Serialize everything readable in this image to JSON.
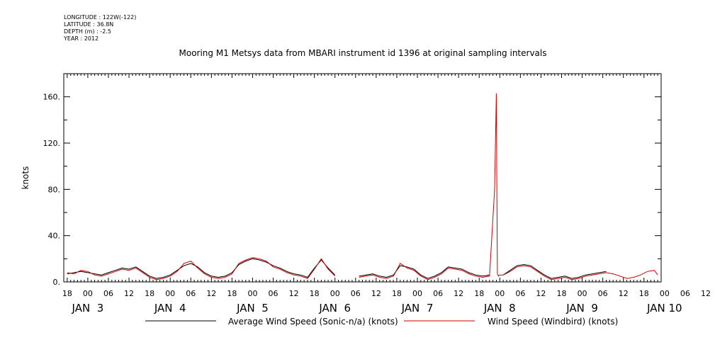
{
  "header": {
    "meta_lines": [
      "LONGITUDE : 122W(-122)",
      "LATITUDE : 36.8N",
      "DEPTH (m) : -2.5",
      "YEAR : 2012"
    ]
  },
  "chart_data": {
    "type": "line",
    "title": "Mooring M1 Metsys data from MBARI instrument id 1396 at original sampling intervals",
    "ylabel": "knots",
    "xlabel": "",
    "ylim": [
      0,
      180
    ],
    "yticks": [
      "0.",
      "40.",
      "80.",
      "120.",
      "160."
    ],
    "xlim_hours": [
      -7,
      167
    ],
    "x_unit": "hours from 2012-01-03 00:00",
    "hour_tick_labels": [
      "18",
      "00",
      "06",
      "12",
      "18",
      "00",
      "06",
      "12",
      "18",
      "00",
      "06",
      "12",
      "18",
      "00",
      "06",
      "12",
      "18",
      "00",
      "06",
      "12",
      "18",
      "00",
      "06",
      "12",
      "18",
      "00",
      "06",
      "12",
      "18",
      "00",
      "06",
      "12"
    ],
    "day_labels": [
      "JAN  3",
      "JAN  4",
      "JAN  5",
      "JAN  6",
      "JAN  7",
      "JAN  8",
      "JAN  9",
      "JAN 10"
    ],
    "legend_placement": "bottom",
    "series": [
      {
        "name": "Average Wind Speed (Sonic-n/a) (knots)",
        "color": "#000000",
        "x": [
          -6,
          -4,
          -2,
          0,
          2,
          4,
          6,
          8,
          10,
          12,
          14,
          16,
          18,
          20,
          22,
          24,
          26,
          28,
          30,
          32,
          34,
          36,
          38,
          40,
          42,
          44,
          46,
          48,
          50,
          52,
          54,
          56,
          58,
          60,
          62,
          64,
          66,
          68,
          70,
          72,
          74,
          76,
          78,
          79,
          81,
          83,
          85,
          87,
          89,
          91,
          93,
          95,
          97,
          99,
          101,
          103,
          105,
          107,
          109,
          111,
          113,
          115,
          117,
          119,
          121,
          123,
          125,
          127,
          129,
          131,
          133,
          135,
          137,
          139,
          141,
          143,
          145,
          147,
          149,
          151,
          153,
          155,
          157,
          159,
          161,
          163,
          165,
          166
        ],
        "y": [
          7,
          8,
          9,
          8,
          7,
          6,
          8,
          10,
          12,
          11,
          13,
          9,
          5,
          3,
          4,
          6,
          10,
          14,
          16,
          13,
          8,
          5,
          4,
          5,
          8,
          15,
          18,
          20,
          19,
          17,
          14,
          12,
          9,
          7,
          6,
          4,
          12,
          19,
          12,
          6,
          null,
          null,
          null,
          5,
          6,
          7,
          5,
          4,
          6,
          14,
          13,
          11,
          6,
          3,
          5,
          8,
          13,
          12,
          11,
          8,
          6,
          5,
          6,
          null,
          6,
          10,
          14,
          15,
          14,
          10,
          6,
          3,
          4,
          5,
          3,
          4,
          6,
          7,
          8,
          9,
          null,
          null,
          null,
          null,
          null,
          null,
          null,
          null
        ]
      },
      {
        "name": "Wind Speed (Windbird) (knots)",
        "color": "#cc0000",
        "x": [
          -6,
          -4,
          -2,
          0,
          2,
          4,
          6,
          8,
          10,
          12,
          14,
          16,
          18,
          20,
          22,
          24,
          26,
          28,
          30,
          32,
          34,
          36,
          38,
          40,
          42,
          44,
          46,
          48,
          50,
          52,
          54,
          56,
          58,
          60,
          62,
          64,
          66,
          68,
          70,
          72,
          74,
          76,
          78,
          79,
          81,
          83,
          85,
          87,
          89,
          91,
          93,
          95,
          97,
          99,
          101,
          103,
          105,
          107,
          109,
          111,
          113,
          115,
          117,
          118.5,
          119,
          119.3,
          119.6,
          120,
          121,
          123,
          125,
          127,
          129,
          131,
          133,
          135,
          137,
          139,
          141,
          143,
          145,
          147,
          149,
          151,
          153,
          155,
          157,
          159,
          161,
          163,
          165,
          166
        ],
        "y": [
          8,
          7,
          10,
          9,
          6,
          5,
          7,
          9,
          11,
          10,
          12,
          8,
          4,
          2,
          3,
          5,
          9,
          16,
          18,
          12,
          7,
          4,
          3,
          4,
          7,
          16,
          19,
          21,
          20,
          18,
          13,
          11,
          8,
          6,
          5,
          3,
          11,
          20,
          11,
          5,
          null,
          null,
          null,
          4,
          5,
          6,
          4,
          3,
          5,
          16,
          12,
          10,
          5,
          2,
          4,
          7,
          12,
          11,
          10,
          7,
          5,
          4,
          5,
          80,
          163,
          7,
          5,
          6,
          6,
          9,
          13,
          14,
          13,
          9,
          5,
          2,
          3,
          4,
          2,
          3,
          5,
          6,
          7,
          8,
          7,
          5,
          3,
          4,
          6,
          9,
          10,
          6
        ]
      }
    ]
  }
}
